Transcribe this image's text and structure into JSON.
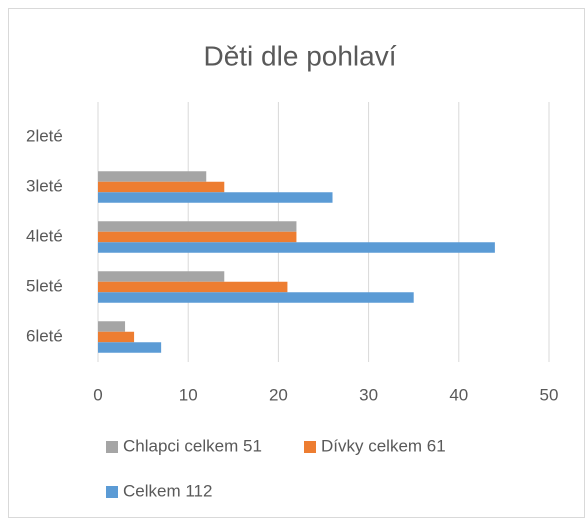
{
  "chart_data": {
    "type": "bar",
    "orientation": "horizontal",
    "title": "Děti dle pohlaví",
    "categories": [
      "2leté",
      "3leté",
      "4leté",
      "5leté",
      "6leté"
    ],
    "series": [
      {
        "name": "Chlapci celkem 51",
        "color": "#a5a5a5",
        "values": [
          0,
          12,
          22,
          14,
          3
        ]
      },
      {
        "name": "Dívky celkem 61",
        "color": "#ed7d31",
        "values": [
          0,
          14,
          22,
          21,
          4
        ]
      },
      {
        "name": "Celkem 112",
        "color": "#5b9bd5",
        "values": [
          0,
          26,
          44,
          35,
          7
        ]
      }
    ],
    "xlim": [
      0,
      50
    ],
    "xticks": [
      0,
      10,
      20,
      30,
      40,
      50
    ],
    "grid": true,
    "legend": "bottom"
  }
}
